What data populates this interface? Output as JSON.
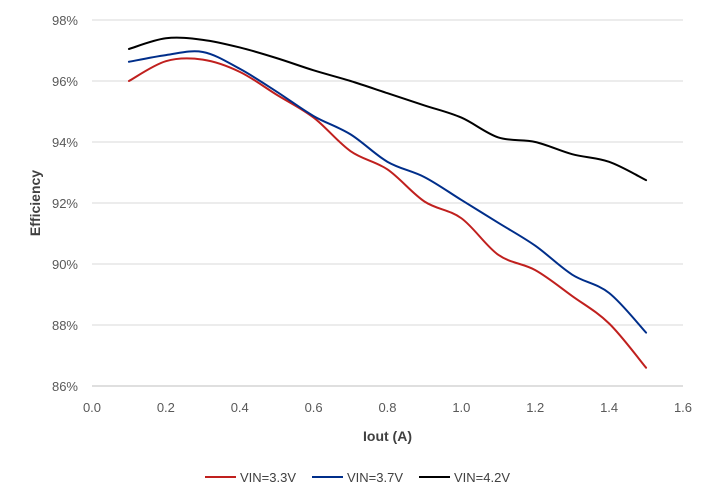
{
  "chart_data": {
    "type": "line",
    "title": "",
    "xlabel": "Iout (A)",
    "ylabel": "Efficiency",
    "xlim": [
      0.0,
      1.6
    ],
    "ylim": [
      86,
      98
    ],
    "x_ticks": [
      "0.0",
      "0.2",
      "0.4",
      "0.6",
      "0.8",
      "1.0",
      "1.2",
      "1.4",
      "1.6"
    ],
    "y_ticks": [
      "86%",
      "88%",
      "90%",
      "92%",
      "94%",
      "96%",
      "98%"
    ],
    "grid": "horizontal",
    "legend_position": "bottom",
    "x": [
      0.1,
      0.2,
      0.3,
      0.4,
      0.5,
      0.6,
      0.7,
      0.8,
      0.9,
      1.0,
      1.1,
      1.2,
      1.3,
      1.4,
      1.5
    ],
    "series": [
      {
        "name": "VIN=3.3V",
        "color": "#c0201e",
        "values": [
          96.0,
          96.65,
          96.7,
          96.3,
          95.55,
          94.8,
          93.7,
          93.1,
          92.05,
          91.5,
          90.3,
          89.8,
          88.95,
          88.05,
          86.6
        ]
      },
      {
        "name": "VIN=3.7V",
        "color": "#002e8a",
        "values": [
          96.63,
          96.85,
          96.95,
          96.4,
          95.65,
          94.85,
          94.25,
          93.35,
          92.85,
          92.1,
          91.35,
          90.6,
          89.65,
          89.05,
          87.75
        ]
      },
      {
        "name": "VIN=4.2V",
        "color": "#000000",
        "values": [
          97.05,
          97.4,
          97.35,
          97.1,
          96.75,
          96.35,
          96.0,
          95.6,
          95.2,
          94.8,
          94.15,
          94.0,
          93.6,
          93.35,
          92.75
        ]
      }
    ]
  }
}
